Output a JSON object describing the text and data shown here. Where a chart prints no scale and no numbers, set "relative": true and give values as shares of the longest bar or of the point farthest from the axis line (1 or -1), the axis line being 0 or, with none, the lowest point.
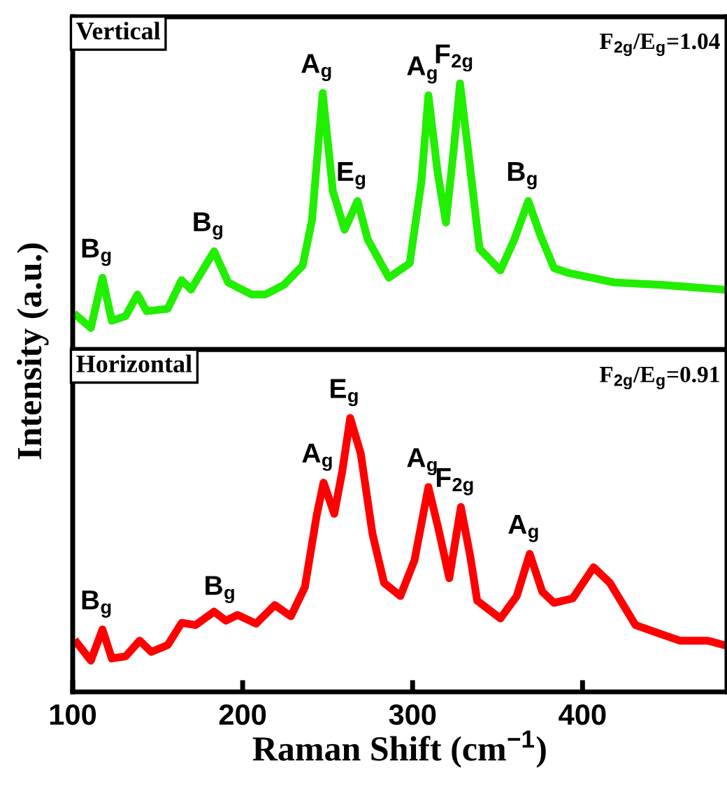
{
  "chart_data": [
    {
      "type": "line",
      "relative": true,
      "ylabel": "Intensity (a.u.)",
      "xlim": [
        100,
        485
      ],
      "tick_labels": false,
      "line_style": "solid",
      "marker": "none",
      "series": [
        {
          "color": "#22ee00",
          "x": [
            102.5,
            110.7,
            117.5,
            123,
            131.2,
            138.1,
            143.5,
            155.9,
            164.1,
            169.6,
            183.2,
            191.5,
            205.2,
            213.4,
            224.3,
            235.3,
            240.8,
            247.1,
            253.1,
            260,
            267.6,
            273.6,
            286,
            298.3,
            305.2,
            309.3,
            314.7,
            319.6,
            324.3,
            327.9,
            332.5,
            339.4,
            351.7,
            359.9,
            368.1,
            375,
            383.2,
            391.5,
            418.8,
            446.2,
            483.2
          ],
          "values": [
            0.126,
            0.081,
            0.27,
            0.108,
            0.126,
            0.207,
            0.144,
            0.153,
            0.261,
            0.225,
            0.369,
            0.252,
            0.207,
            0.207,
            0.243,
            0.315,
            0.486,
            0.964,
            0.595,
            0.45,
            0.558,
            0.414,
            0.27,
            0.324,
            0.631,
            0.955,
            0.667,
            0.477,
            0.757,
            1.0,
            0.757,
            0.378,
            0.297,
            0.414,
            0.558,
            0.432,
            0.306,
            0.288,
            0.252,
            0.243,
            0.225
          ]
        }
      ],
      "annotations": [
        "Vertical",
        "F$_{2g}$/E$_{g}$=1.04",
        {
          "text": "B$_{g}$",
          "x": 117.5,
          "y": 0.27
        },
        {
          "text": "B$_{g}$",
          "x": 183.2,
          "y": 0.369
        },
        {
          "text": "A$_{g}$",
          "x": 247.1,
          "y": 0.964
        },
        {
          "text": "E$_{g}$",
          "x": 267.6,
          "y": 0.558
        },
        {
          "text": "A$_{g}$",
          "x": 309.3,
          "y": 0.955
        },
        {
          "text": "F$_{2g}$",
          "x": 327.9,
          "y": 1.0
        },
        {
          "text": "B$_{g}$",
          "x": 368.1,
          "y": 0.558
        }
      ]
    },
    {
      "type": "line",
      "relative": true,
      "xlabel": "Raman Shift (cm$^{−1}$)",
      "xlim": [
        100,
        485
      ],
      "xticks": [
        100,
        200,
        300,
        400
      ],
      "tick_labels": "x",
      "line_style": "solid",
      "marker": "none",
      "series": [
        {
          "color": "#ff0000",
          "x": [
            102.5,
            110.7,
            117.5,
            123,
            131.2,
            139.4,
            146.3,
            155.9,
            164.1,
            172.3,
            183.2,
            190.1,
            197,
            207.9,
            218.9,
            228.4,
            236.6,
            243.5,
            247.6,
            253.9,
            258.6,
            263.3,
            269.5,
            276.4,
            283.2,
            292.8,
            301.1,
            309.3,
            315.3,
            321.6,
            328.4,
            333.9,
            338,
            351.7,
            361.3,
            368.9,
            376.3,
            383.2,
            394.2,
            406.5,
            416.1,
            431.1,
            446.2,
            457.2,
            473.6,
            483.2
          ],
          "values": [
            0.179,
            0.114,
            0.228,
            0.122,
            0.13,
            0.187,
            0.146,
            0.171,
            0.252,
            0.244,
            0.293,
            0.26,
            0.281,
            0.249,
            0.317,
            0.276,
            0.382,
            0.642,
            0.764,
            0.65,
            0.805,
            1.0,
            0.87,
            0.577,
            0.398,
            0.35,
            0.48,
            0.748,
            0.593,
            0.415,
            0.675,
            0.496,
            0.333,
            0.268,
            0.35,
            0.504,
            0.366,
            0.325,
            0.341,
            0.455,
            0.398,
            0.244,
            0.211,
            0.187,
            0.187,
            0.171
          ]
        }
      ],
      "annotations": [
        "Horizontal",
        "F$_{2g}$/E$_{g}$=0.91",
        {
          "text": "B$_{g}$",
          "x": 117.5,
          "y": 0.228
        },
        {
          "text": "B$_{g}$",
          "x": 190.1,
          "y": 0.281
        },
        {
          "text": "A$_{g}$",
          "x": 247.6,
          "y": 0.764
        },
        {
          "text": "E$_{g}$",
          "x": 263.3,
          "y": 1.0
        },
        {
          "text": "A$_{g}$",
          "x": 309.3,
          "y": 0.748
        },
        {
          "text": "F$_{2g}$",
          "x": 328.4,
          "y": 0.675
        },
        {
          "text": "A$_{g}$",
          "x": 368.9,
          "y": 0.504
        }
      ]
    }
  ]
}
